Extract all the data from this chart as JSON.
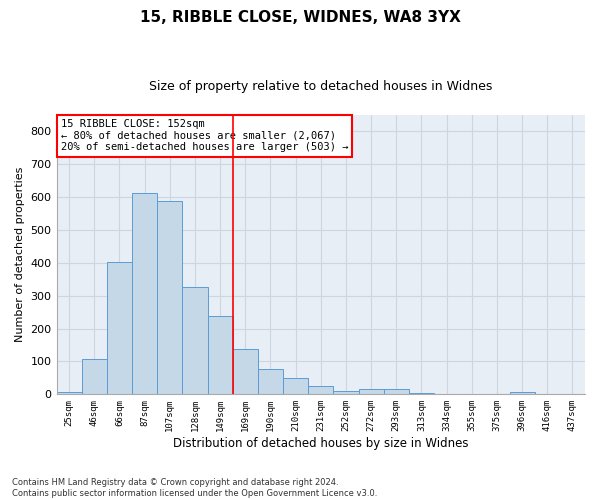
{
  "title1": "15, RIBBLE CLOSE, WIDNES, WA8 3YX",
  "title2": "Size of property relative to detached houses in Widnes",
  "xlabel": "Distribution of detached houses by size in Widnes",
  "ylabel": "Number of detached properties",
  "bar_labels": [
    "25sqm",
    "46sqm",
    "66sqm",
    "87sqm",
    "107sqm",
    "128sqm",
    "149sqm",
    "169sqm",
    "190sqm",
    "210sqm",
    "231sqm",
    "252sqm",
    "272sqm",
    "293sqm",
    "313sqm",
    "334sqm",
    "355sqm",
    "375sqm",
    "396sqm",
    "416sqm",
    "437sqm"
  ],
  "bar_values": [
    7,
    106,
    402,
    612,
    587,
    328,
    238,
    137,
    77,
    50,
    25,
    11,
    15,
    16,
    5,
    0,
    0,
    0,
    7,
    0,
    0
  ],
  "bar_color": "#c5d8e8",
  "bar_edgecolor": "#5b9bd5",
  "vline_color": "red",
  "annotation_text": "15 RIBBLE CLOSE: 152sqm\n← 80% of detached houses are smaller (2,067)\n20% of semi-detached houses are larger (503) →",
  "annotation_box_color": "white",
  "annotation_box_edgecolor": "red",
  "ylim": [
    0,
    850
  ],
  "yticks": [
    0,
    100,
    200,
    300,
    400,
    500,
    600,
    700,
    800
  ],
  "grid_color": "#cdd5e0",
  "bg_color": "#e8eef5",
  "footnote": "Contains HM Land Registry data © Crown copyright and database right 2024.\nContains public sector information licensed under the Open Government Licence v3.0."
}
